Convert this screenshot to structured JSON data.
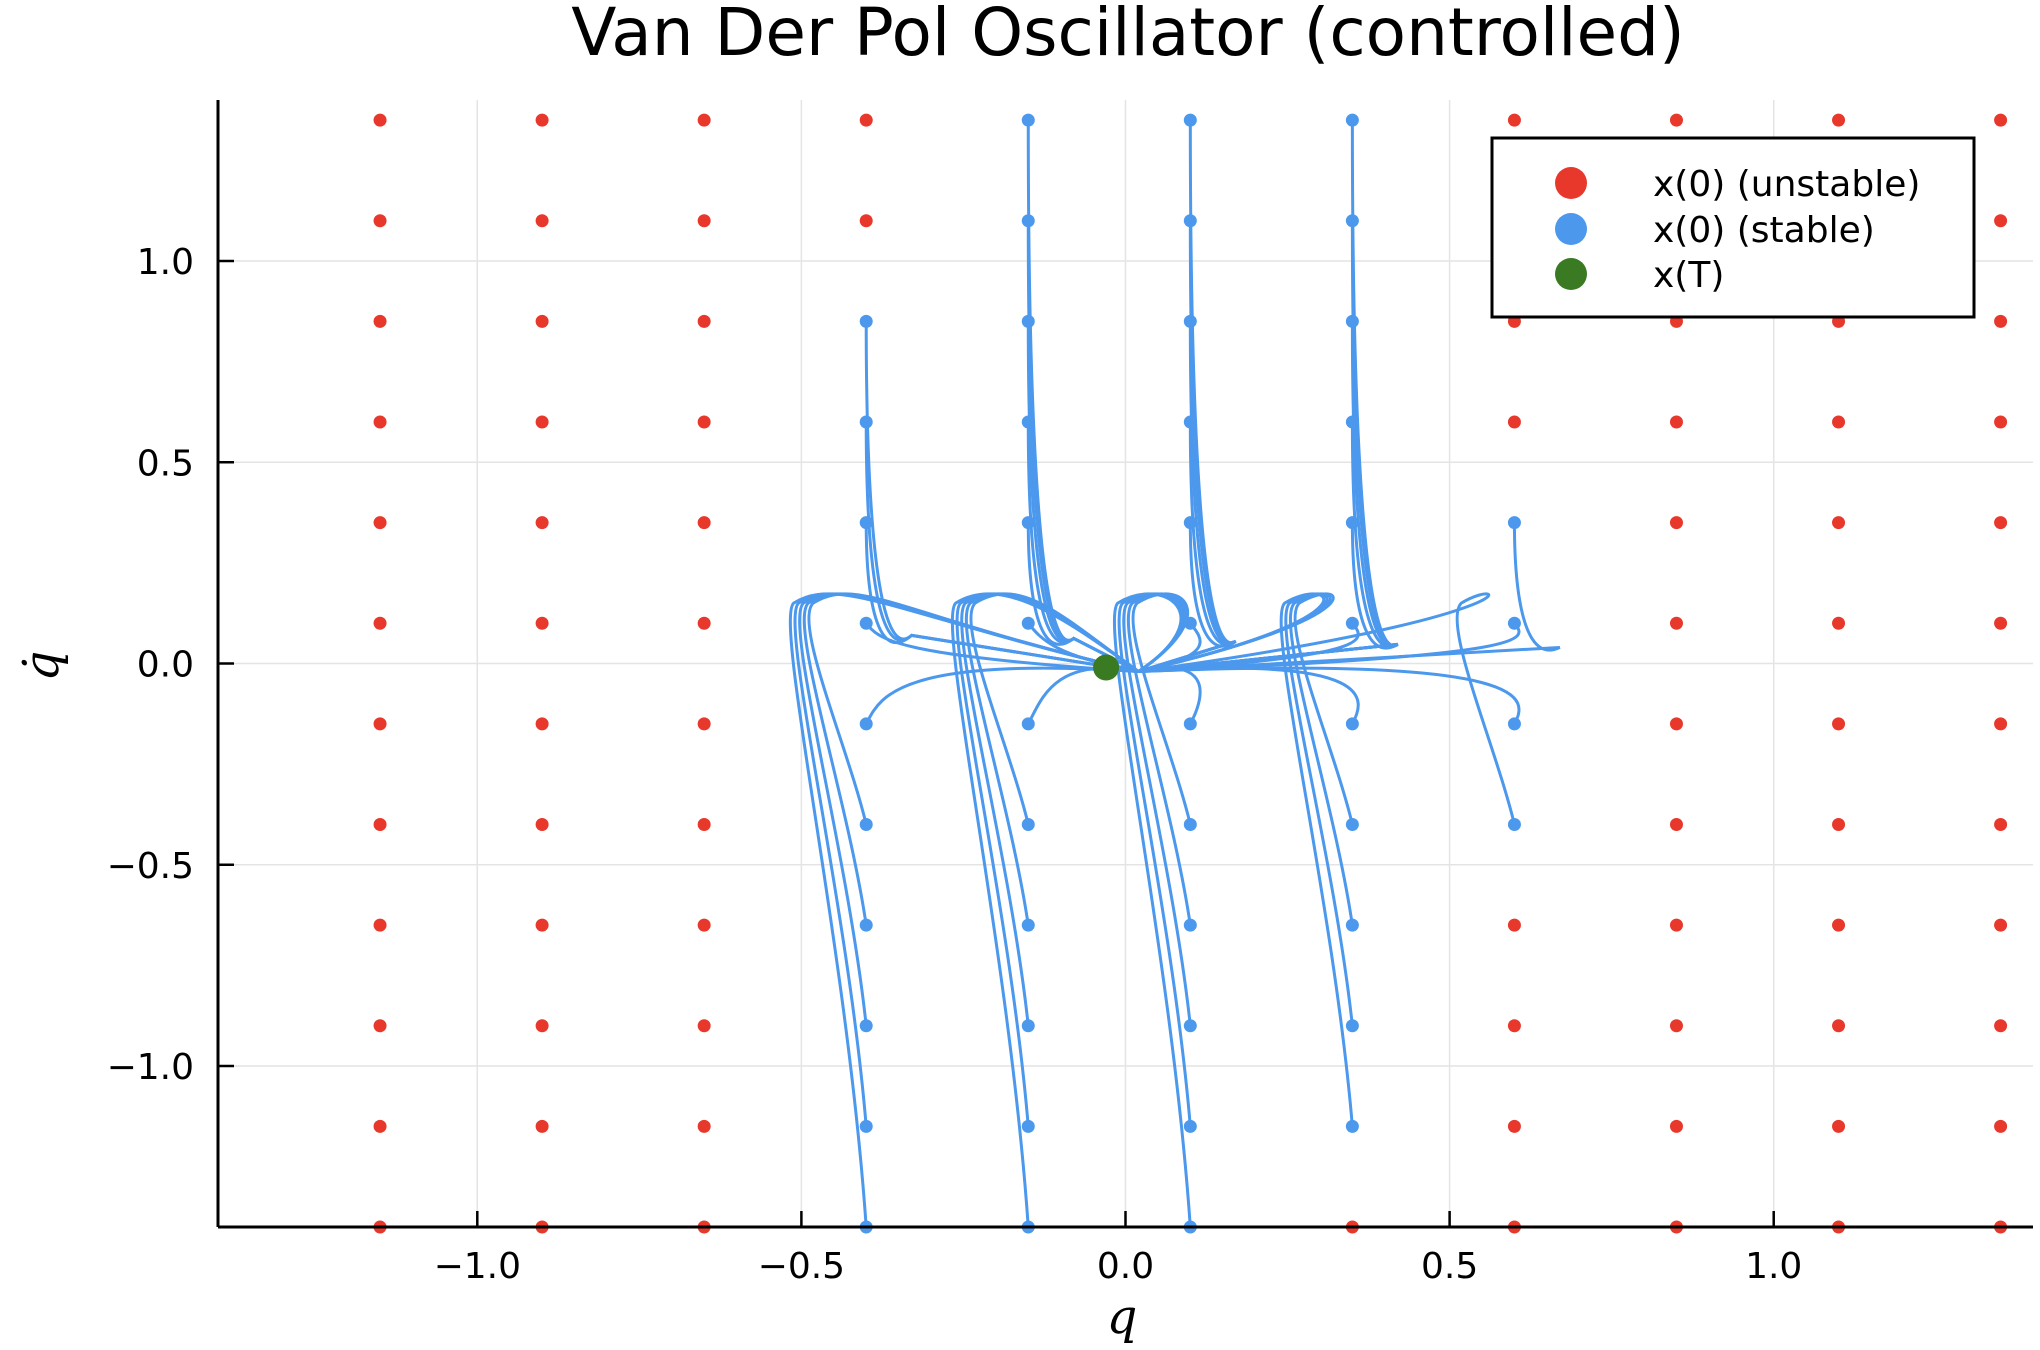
{
  "chart_data": {
    "type": "scatter",
    "title": "Van Der Pol Oscillator (controlled)",
    "xlabel": "q",
    "ylabel": "q̇",
    "xlim": [
      -1.4,
      1.4
    ],
    "ylim": [
      -1.4,
      1.4
    ],
    "xticks": [
      -1.0,
      -0.5,
      0.0,
      0.5,
      1.0
    ],
    "xtick_labels": [
      "−1.0",
      "−0.5",
      "0.0",
      "0.5",
      "1.0"
    ],
    "yticks": [
      -1.0,
      -0.5,
      0.0,
      0.5,
      1.0
    ],
    "ytick_labels": [
      "−1.0",
      "−0.5",
      "0.0",
      "0.5",
      "1.0"
    ],
    "grid": true,
    "legend_position": "top-right",
    "colors": {
      "unstable": "#e8382c",
      "stable": "#4b98ed",
      "final": "#3a7a22"
    },
    "grid_values": [
      -1.15,
      -0.9,
      -0.65,
      -0.4,
      -0.15,
      0.1,
      0.35,
      0.6,
      0.85,
      1.1,
      1.35
    ],
    "grid_values_y": [
      1.35,
      1.1,
      0.85,
      0.6,
      0.35,
      0.1,
      -0.15,
      -0.4,
      -0.65,
      -0.9,
      -1.15,
      -1.4
    ],
    "stable_points": [
      [
        -0.4,
        0.85
      ],
      [
        -0.4,
        0.6
      ],
      [
        -0.4,
        0.35
      ],
      [
        -0.4,
        0.1
      ],
      [
        -0.4,
        -0.15
      ],
      [
        -0.4,
        -0.4
      ],
      [
        -0.4,
        -0.65
      ],
      [
        -0.4,
        -0.9
      ],
      [
        -0.4,
        -1.15
      ],
      [
        -0.4,
        -1.4
      ],
      [
        -0.15,
        1.35
      ],
      [
        -0.15,
        1.1
      ],
      [
        -0.15,
        0.85
      ],
      [
        -0.15,
        0.6
      ],
      [
        -0.15,
        0.35
      ],
      [
        -0.15,
        0.1
      ],
      [
        -0.15,
        -0.15
      ],
      [
        -0.15,
        -0.4
      ],
      [
        -0.15,
        -0.65
      ],
      [
        -0.15,
        -0.9
      ],
      [
        -0.15,
        -1.15
      ],
      [
        -0.15,
        -1.4
      ],
      [
        0.1,
        1.35
      ],
      [
        0.1,
        1.1
      ],
      [
        0.1,
        0.85
      ],
      [
        0.1,
        0.6
      ],
      [
        0.1,
        0.35
      ],
      [
        0.1,
        0.1
      ],
      [
        0.1,
        -0.15
      ],
      [
        0.1,
        -0.4
      ],
      [
        0.1,
        -0.65
      ],
      [
        0.1,
        -0.9
      ],
      [
        0.1,
        -1.15
      ],
      [
        0.1,
        -1.4
      ],
      [
        0.35,
        1.35
      ],
      [
        0.35,
        1.1
      ],
      [
        0.35,
        0.85
      ],
      [
        0.35,
        0.6
      ],
      [
        0.35,
        0.35
      ],
      [
        0.35,
        0.1
      ],
      [
        0.35,
        -0.15
      ],
      [
        0.35,
        -0.4
      ],
      [
        0.35,
        -0.65
      ],
      [
        0.35,
        -0.9
      ],
      [
        0.35,
        -1.15
      ],
      [
        0.6,
        0.35
      ],
      [
        0.6,
        0.1
      ],
      [
        0.6,
        -0.15
      ],
      [
        0.6,
        -0.4
      ]
    ],
    "final_point": [
      -0.03,
      -0.01
    ],
    "legend": [
      {
        "label": "x(0) (unstable)",
        "series": "unstable"
      },
      {
        "label": "x(0) (stable)",
        "series": "stable"
      },
      {
        "label": "x(T)",
        "series": "final"
      }
    ]
  }
}
